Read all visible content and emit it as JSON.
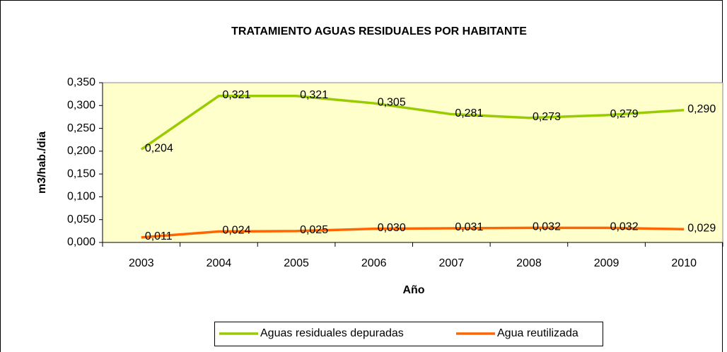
{
  "chart_data": {
    "type": "line",
    "title": "TRATAMIENTO AGUAS RESIDUALES POR HABITANTE",
    "x_label": "Año",
    "y_label": "m3/hab./dia",
    "categories": [
      "2003",
      "2004",
      "2005",
      "2006",
      "2007",
      "2008",
      "2009",
      "2010"
    ],
    "series": [
      {
        "name": "Aguas residuales depuradas",
        "color": "#99cc00",
        "values": [
          0.204,
          0.321,
          0.321,
          0.305,
          0.281,
          0.273,
          0.279,
          0.29
        ],
        "value_labels": [
          "0,204",
          "0,321",
          "0,321",
          "0,305",
          "0,281",
          "0,273",
          "0,279",
          "0,290"
        ]
      },
      {
        "name": "Agua reutilizada",
        "color": "#ff6600",
        "values": [
          0.011,
          0.024,
          0.025,
          0.03,
          0.031,
          0.032,
          0.032,
          0.029
        ],
        "value_labels": [
          "0,011",
          "0,024",
          "0,025",
          "0,030",
          "0,031",
          "0,032",
          "0,032",
          "0,029"
        ]
      }
    ],
    "ylim": [
      0,
      0.35
    ],
    "yticks": [
      {
        "value": 0,
        "label": "0,000"
      },
      {
        "value": 0.05,
        "label": "0,050"
      },
      {
        "value": 0.1,
        "label": "0,100"
      },
      {
        "value": 0.15,
        "label": "0,150"
      },
      {
        "value": 0.2,
        "label": "0,200"
      },
      {
        "value": 0.25,
        "label": "0,250"
      },
      {
        "value": 0.3,
        "label": "0,300"
      },
      {
        "value": 0.35,
        "label": "0,350"
      }
    ],
    "plot_background": "#ffffcc",
    "legend": "bottom"
  }
}
